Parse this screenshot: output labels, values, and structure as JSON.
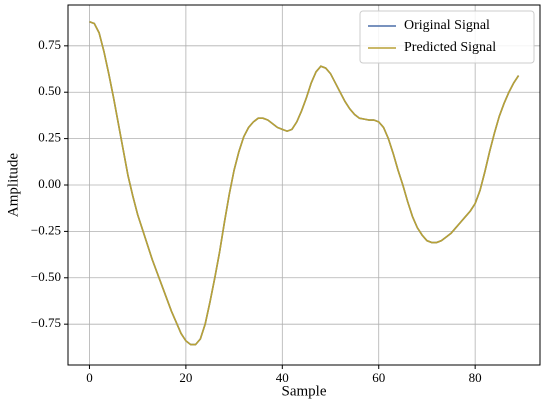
{
  "chart_data": {
    "type": "line",
    "xlabel": "Sample",
    "ylabel": "Amplitude",
    "x": [
      0,
      1,
      2,
      3,
      4,
      5,
      6,
      7,
      8,
      9,
      10,
      11,
      12,
      13,
      14,
      15,
      16,
      17,
      18,
      19,
      20,
      21,
      22,
      23,
      24,
      25,
      26,
      27,
      28,
      29,
      30,
      31,
      32,
      33,
      34,
      35,
      36,
      37,
      38,
      39,
      40,
      41,
      42,
      43,
      44,
      45,
      46,
      47,
      48,
      49,
      50,
      51,
      52,
      53,
      54,
      55,
      56,
      57,
      58,
      59,
      60,
      61,
      62,
      63,
      64,
      65,
      66,
      67,
      68,
      69,
      70,
      71,
      72,
      73,
      74,
      75,
      76,
      77,
      78,
      79,
      80,
      81,
      82,
      83,
      84,
      85,
      86,
      87,
      88,
      89
    ],
    "series": [
      {
        "name": "Original Signal",
        "color": "#4c6fa8",
        "values": [
          0.88,
          0.87,
          0.82,
          0.72,
          0.6,
          0.47,
          0.33,
          0.19,
          0.05,
          -0.06,
          -0.16,
          -0.24,
          -0.32,
          -0.4,
          -0.47,
          -0.54,
          -0.61,
          -0.68,
          -0.74,
          -0.8,
          -0.84,
          -0.86,
          -0.86,
          -0.83,
          -0.75,
          -0.63,
          -0.5,
          -0.36,
          -0.2,
          -0.05,
          0.08,
          0.18,
          0.26,
          0.31,
          0.34,
          0.36,
          0.36,
          0.35,
          0.33,
          0.31,
          0.3,
          0.29,
          0.3,
          0.34,
          0.4,
          0.47,
          0.55,
          0.61,
          0.64,
          0.63,
          0.6,
          0.55,
          0.5,
          0.45,
          0.41,
          0.38,
          0.36,
          0.355,
          0.35,
          0.35,
          0.34,
          0.31,
          0.25,
          0.17,
          0.08,
          0.0,
          -0.09,
          -0.17,
          -0.23,
          -0.27,
          -0.3,
          -0.31,
          -0.31,
          -0.3,
          -0.28,
          -0.26,
          -0.23,
          -0.2,
          -0.17,
          -0.14,
          -0.1,
          -0.03,
          0.07,
          0.18,
          0.28,
          0.37,
          0.44,
          0.5,
          0.55,
          0.59
        ]
      },
      {
        "name": "Predicted Signal",
        "color": "#b8a136",
        "values": [
          0.88,
          0.87,
          0.82,
          0.72,
          0.6,
          0.47,
          0.33,
          0.19,
          0.05,
          -0.06,
          -0.16,
          -0.24,
          -0.32,
          -0.4,
          -0.47,
          -0.54,
          -0.61,
          -0.68,
          -0.74,
          -0.8,
          -0.84,
          -0.86,
          -0.86,
          -0.83,
          -0.75,
          -0.63,
          -0.5,
          -0.36,
          -0.2,
          -0.05,
          0.08,
          0.18,
          0.26,
          0.31,
          0.34,
          0.36,
          0.36,
          0.35,
          0.33,
          0.31,
          0.3,
          0.29,
          0.3,
          0.34,
          0.4,
          0.47,
          0.55,
          0.61,
          0.64,
          0.63,
          0.6,
          0.55,
          0.5,
          0.45,
          0.41,
          0.38,
          0.36,
          0.355,
          0.35,
          0.35,
          0.34,
          0.31,
          0.25,
          0.17,
          0.08,
          0.0,
          -0.09,
          -0.17,
          -0.23,
          -0.27,
          -0.3,
          -0.31,
          -0.31,
          -0.3,
          -0.28,
          -0.26,
          -0.23,
          -0.2,
          -0.17,
          -0.14,
          -0.1,
          -0.03,
          0.07,
          0.18,
          0.28,
          0.37,
          0.44,
          0.5,
          0.55,
          0.59
        ]
      }
    ],
    "xlim": [
      -4.45,
      93.45
    ],
    "xticks": [
      0,
      20,
      40,
      60,
      80
    ],
    "ylim": [
      -0.97,
      0.97
    ],
    "yticks": [
      {
        "value": -0.75,
        "label": "−0.75"
      },
      {
        "value": -0.5,
        "label": "−0.50"
      },
      {
        "value": -0.25,
        "label": "−0.25"
      },
      {
        "value": 0,
        "label": "0.00"
      },
      0.25,
      {
        "value": 0.5,
        "label": "0.50"
      },
      0.75
    ],
    "grid": true,
    "legend": "upper-right"
  }
}
